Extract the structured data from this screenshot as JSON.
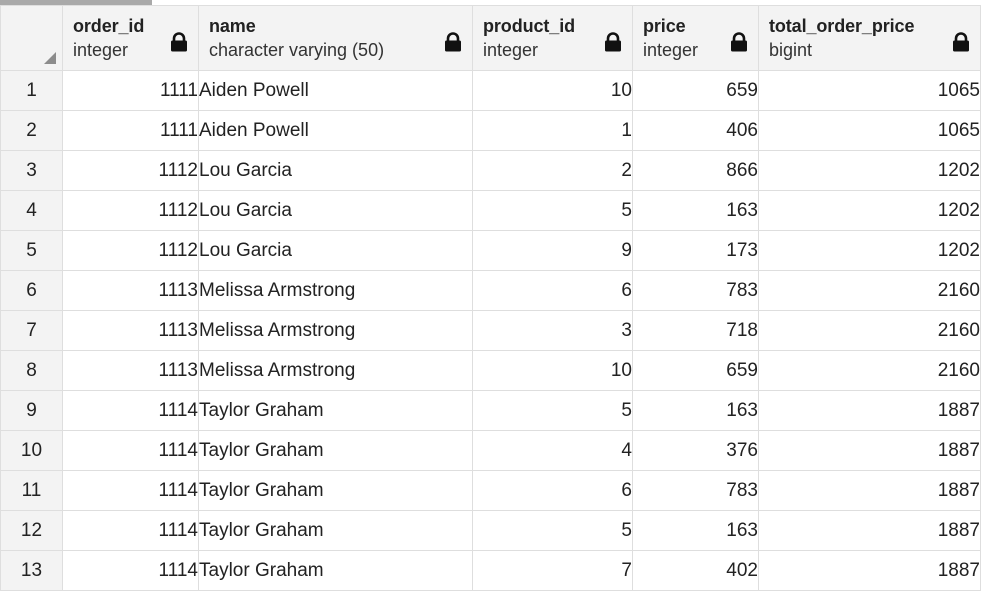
{
  "columns": [
    {
      "name": "order_id",
      "type": "integer"
    },
    {
      "name": "name",
      "type": "character varying (50)"
    },
    {
      "name": "product_id",
      "type": "integer"
    },
    {
      "name": "price",
      "type": "integer"
    },
    {
      "name": "total_order_price",
      "type": "bigint"
    }
  ],
  "rows": [
    {
      "n": "1",
      "order_id": "1111",
      "name": "Aiden Powell",
      "product_id": "10",
      "price": "659",
      "total_order_price": "1065"
    },
    {
      "n": "2",
      "order_id": "1111",
      "name": "Aiden Powell",
      "product_id": "1",
      "price": "406",
      "total_order_price": "1065"
    },
    {
      "n": "3",
      "order_id": "1112",
      "name": "Lou Garcia",
      "product_id": "2",
      "price": "866",
      "total_order_price": "1202"
    },
    {
      "n": "4",
      "order_id": "1112",
      "name": "Lou Garcia",
      "product_id": "5",
      "price": "163",
      "total_order_price": "1202"
    },
    {
      "n": "5",
      "order_id": "1112",
      "name": "Lou Garcia",
      "product_id": "9",
      "price": "173",
      "total_order_price": "1202"
    },
    {
      "n": "6",
      "order_id": "1113",
      "name": "Melissa Armstrong",
      "product_id": "6",
      "price": "783",
      "total_order_price": "2160"
    },
    {
      "n": "7",
      "order_id": "1113",
      "name": "Melissa Armstrong",
      "product_id": "3",
      "price": "718",
      "total_order_price": "2160"
    },
    {
      "n": "8",
      "order_id": "1113",
      "name": "Melissa Armstrong",
      "product_id": "10",
      "price": "659",
      "total_order_price": "2160"
    },
    {
      "n": "9",
      "order_id": "1114",
      "name": "Taylor Graham",
      "product_id": "5",
      "price": "163",
      "total_order_price": "1887"
    },
    {
      "n": "10",
      "order_id": "1114",
      "name": "Taylor Graham",
      "product_id": "4",
      "price": "376",
      "total_order_price": "1887"
    },
    {
      "n": "11",
      "order_id": "1114",
      "name": "Taylor Graham",
      "product_id": "6",
      "price": "783",
      "total_order_price": "1887"
    },
    {
      "n": "12",
      "order_id": "1114",
      "name": "Taylor Graham",
      "product_id": "5",
      "price": "163",
      "total_order_price": "1887"
    },
    {
      "n": "13",
      "order_id": "1114",
      "name": "Taylor Graham",
      "product_id": "7",
      "price": "402",
      "total_order_price": "1887"
    }
  ],
  "icons": {
    "column_lock": "lock-icon",
    "corner": "select-all-corner-icon"
  }
}
